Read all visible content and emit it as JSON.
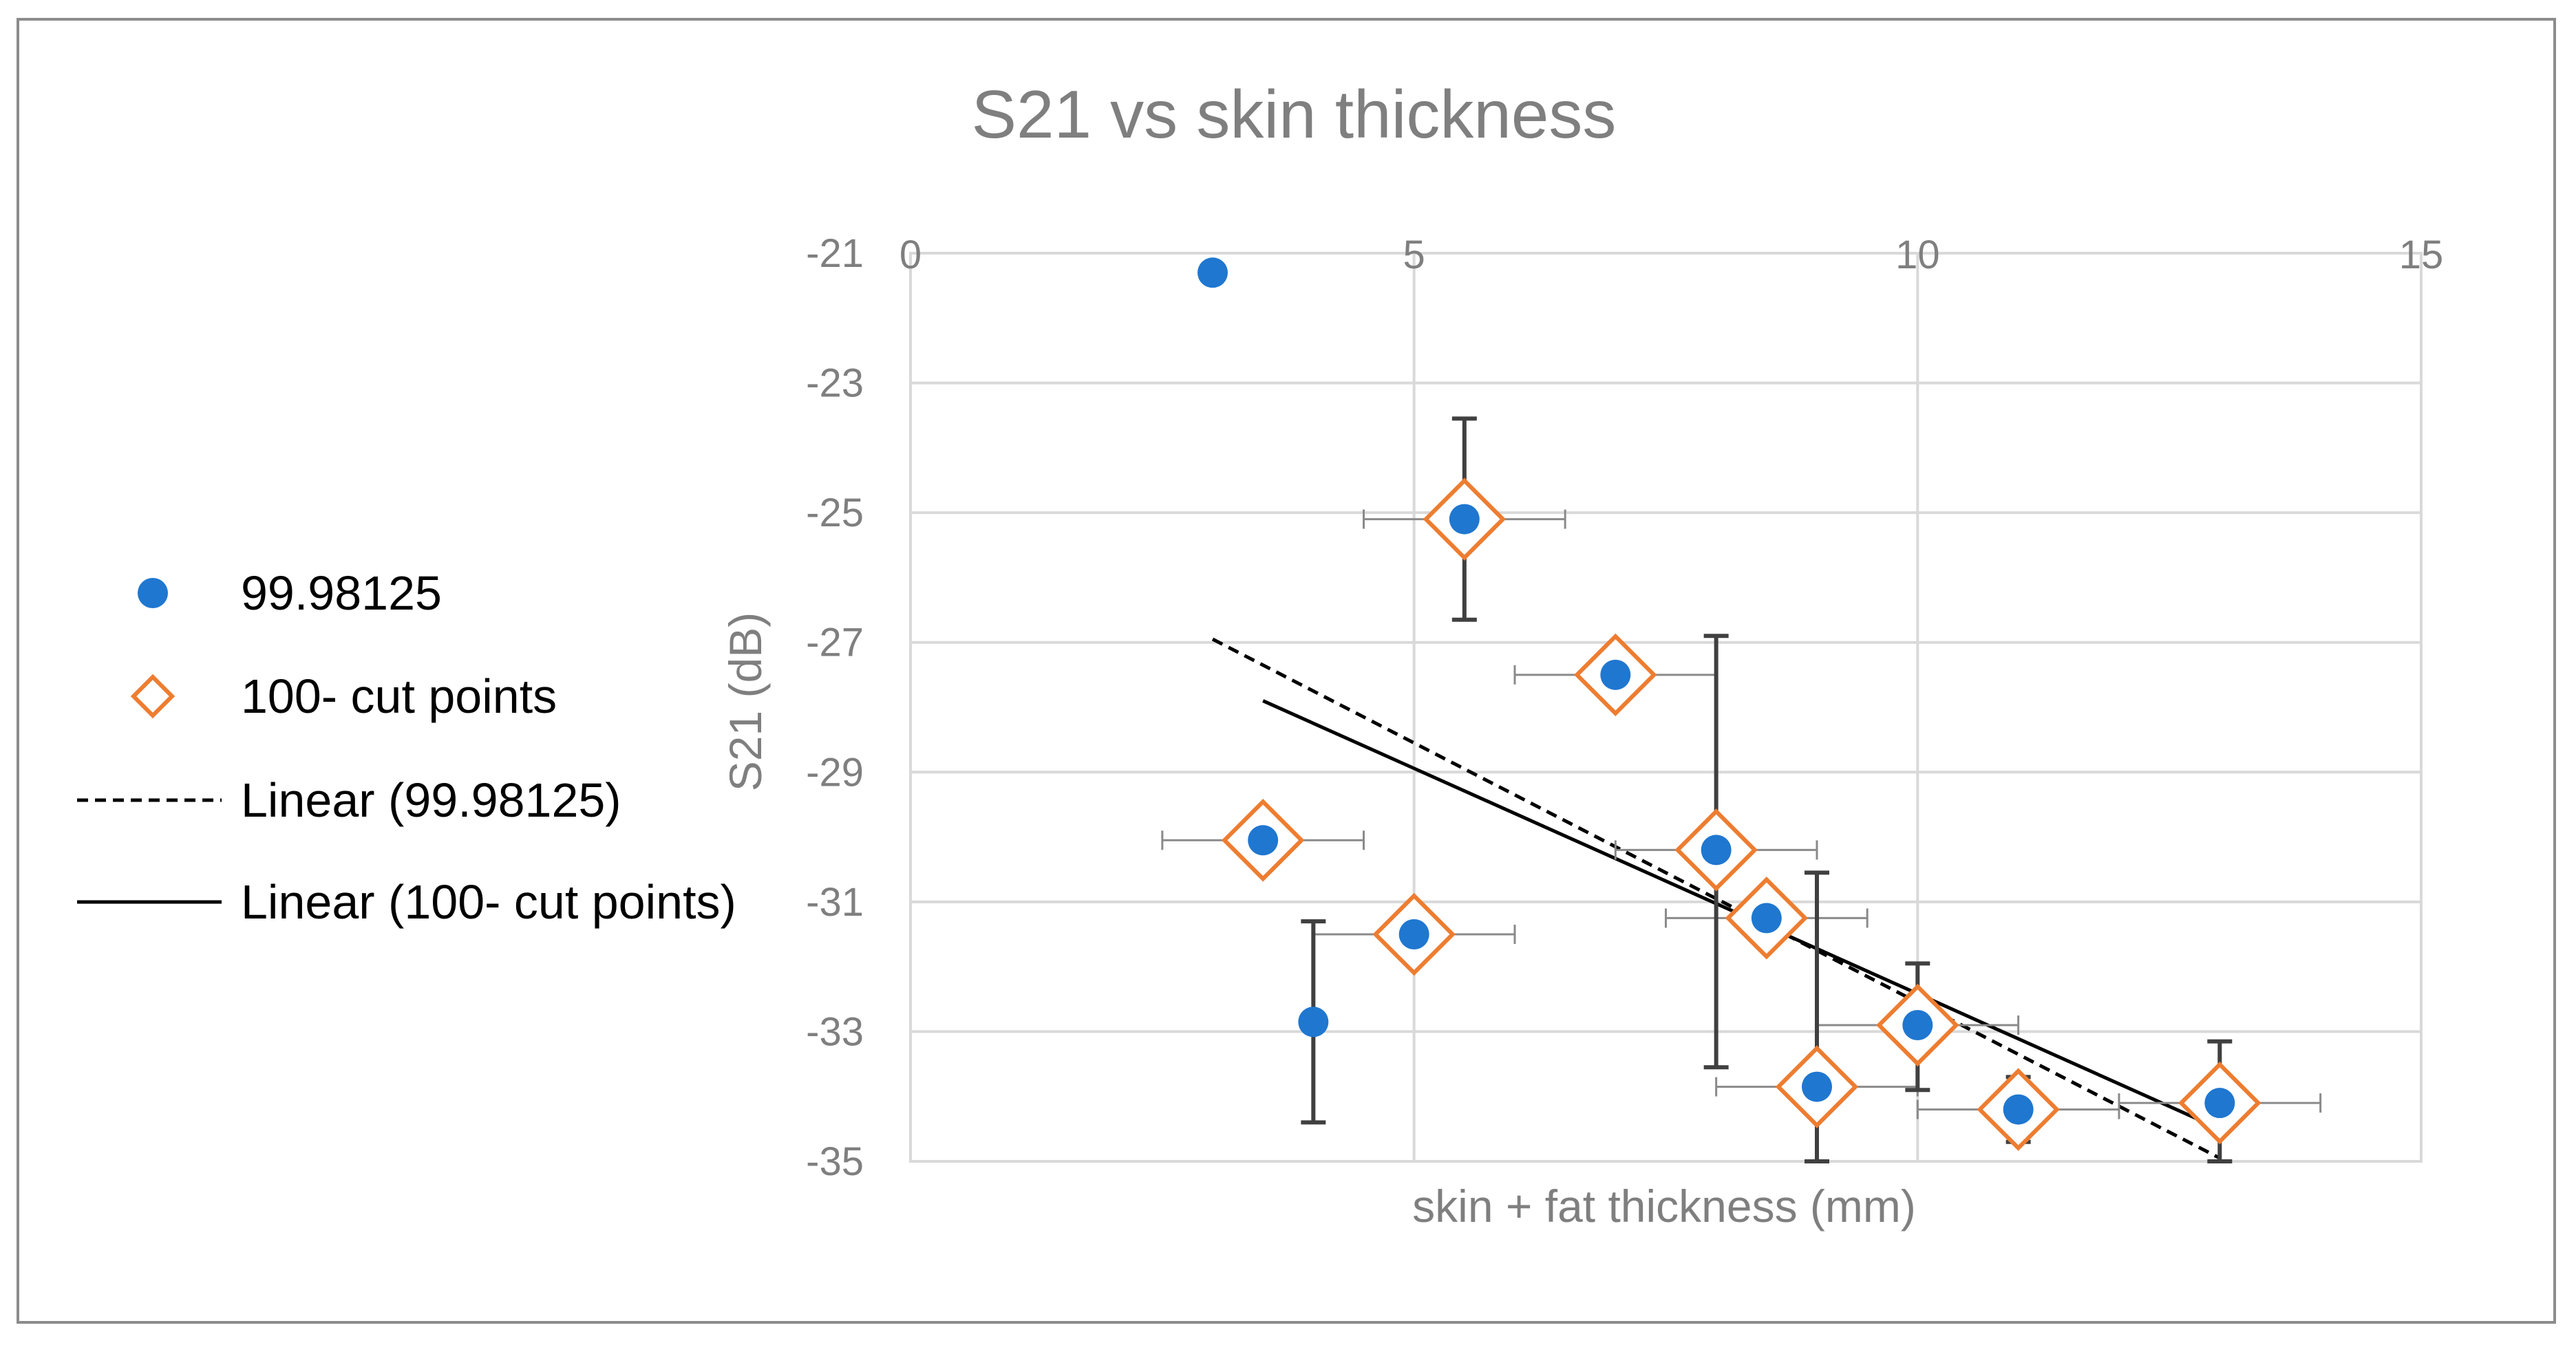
{
  "chart_data": {
    "type": "scatter",
    "title": "S21 vs skin thickness",
    "xlabel": "skin + fat thickness (mm)",
    "ylabel": "S21 (dB)",
    "xlim": [
      0,
      15
    ],
    "ylim": [
      -35,
      -21
    ],
    "x_ticks": [
      0,
      5,
      10,
      15
    ],
    "y_ticks": [
      -21,
      -23,
      -25,
      -27,
      -29,
      -31,
      -33,
      -35
    ],
    "x_tick_labels": [
      "0",
      "5",
      "10",
      "15"
    ],
    "y_tick_labels": [
      "-21",
      "-23",
      "-25",
      "-27",
      "-29",
      "-31",
      "-33",
      "-35"
    ],
    "grid": true,
    "legend_position": "left",
    "series": [
      {
        "name": "99.98125",
        "marker": "filled-circle",
        "color": "#1f77d0",
        "points": [
          {
            "x": 3,
            "y": -21.3
          },
          {
            "x": 3.5,
            "y": -30.05
          },
          {
            "x": 4,
            "y": -32.85
          },
          {
            "x": 5,
            "y": -31.5
          },
          {
            "x": 5.5,
            "y": -25.1
          },
          {
            "x": 7,
            "y": -27.5
          },
          {
            "x": 8,
            "y": -30.2
          },
          {
            "x": 8.5,
            "y": -31.25
          },
          {
            "x": 9,
            "y": -33.85
          },
          {
            "x": 10,
            "y": -32.9
          },
          {
            "x": 11,
            "y": -34.2
          },
          {
            "x": 13,
            "y": -34.1
          }
        ]
      },
      {
        "name": "100- cut points",
        "marker": "open-diamond",
        "color": "#ed7d31",
        "points": [
          {
            "x": 3.5,
            "y": -30.05
          },
          {
            "x": 5,
            "y": -31.5
          },
          {
            "x": 5.5,
            "y": -25.1
          },
          {
            "x": 7,
            "y": -27.5
          },
          {
            "x": 8,
            "y": -30.2
          },
          {
            "x": 8.5,
            "y": -31.25
          },
          {
            "x": 9,
            "y": -33.85
          },
          {
            "x": 10,
            "y": -32.9
          },
          {
            "x": 11,
            "y": -34.2
          },
          {
            "x": 13,
            "y": -34.1
          }
        ]
      }
    ],
    "trendlines": [
      {
        "name": "Linear (99.98125)",
        "style": "dashed",
        "color": "#000000",
        "x": [
          3,
          13
        ],
        "y": [
          -26.95,
          -34.95
        ]
      },
      {
        "name": "Linear (100- cut points)",
        "style": "solid",
        "color": "#000000",
        "x": [
          3.5,
          13
        ],
        "y": [
          -27.9,
          -34.5
        ]
      }
    ],
    "y_error_bars": [
      {
        "x": 4,
        "low": -34.4,
        "high": -31.3
      },
      {
        "x": 5.5,
        "low": -26.65,
        "high": -23.55
      },
      {
        "x": 8,
        "low": -33.55,
        "high": -26.9
      },
      {
        "x": 9,
        "low": -35,
        "high": -30.55
      },
      {
        "x": 10,
        "low": -33.9,
        "high": -31.95
      },
      {
        "x": 11,
        "low": -34.7,
        "high": -33.7
      },
      {
        "x": 13,
        "low": -35,
        "high": -33.15
      }
    ],
    "x_error_bars": [
      {
        "y": -25.1,
        "low": 4.5,
        "high": 6.5
      },
      {
        "y": -27.5,
        "low": 6,
        "high": 8
      },
      {
        "y": -30.05,
        "low": 2.5,
        "high": 4.5
      },
      {
        "y": -31.5,
        "low": 4,
        "high": 6
      },
      {
        "y": -30.2,
        "low": 7,
        "high": 9
      },
      {
        "y": -31.25,
        "low": 7.5,
        "high": 9.5
      },
      {
        "y": -33.85,
        "low": 8,
        "high": 10
      },
      {
        "y": -32.9,
        "low": 9,
        "high": 11
      },
      {
        "y": -34.2,
        "low": 10,
        "high": 12
      },
      {
        "y": -34.1,
        "low": 12,
        "high": 14
      }
    ],
    "legend": [
      {
        "label": "99.98125",
        "symbol": "filled-circle",
        "color": "#1f77d0"
      },
      {
        "label": "100- cut points",
        "symbol": "open-diamond",
        "color": "#ed7d31"
      },
      {
        "label": "Linear (99.98125)",
        "symbol": "dashed-line",
        "color": "#000000"
      },
      {
        "label": "Linear (100- cut points)",
        "symbol": "solid-line",
        "color": "#000000"
      }
    ]
  }
}
